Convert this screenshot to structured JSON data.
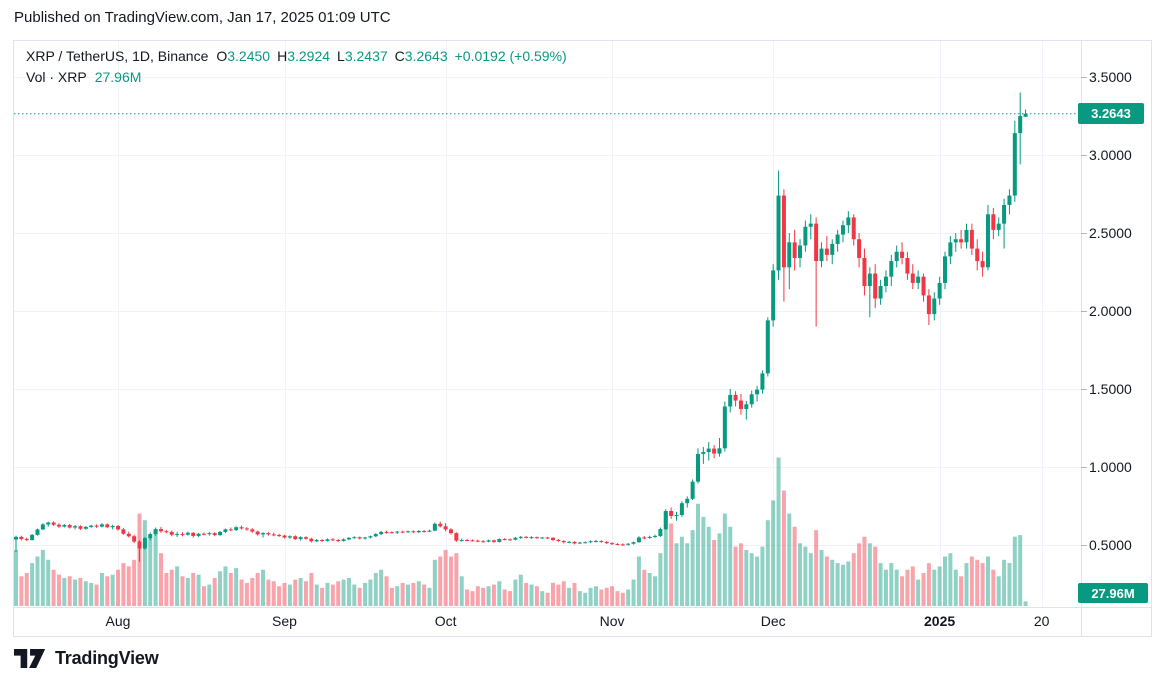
{
  "header": {
    "published_line": "Published on TradingView.com, Jan 17, 2025 01:09 UTC"
  },
  "legend": {
    "symbol": "XRP / TetherUS, 1D, Binance",
    "o_label": "O",
    "o": "3.2450",
    "h_label": "H",
    "h": "3.2924",
    "l_label": "L",
    "l": "3.2437",
    "c_label": "C",
    "c": "3.2643",
    "change": "+0.0192 (+0.59%)"
  },
  "volume_row": {
    "label": "Vol · XRP",
    "value": "27.96M"
  },
  "badges": {
    "last_price": "3.2643",
    "volume": "27.96M"
  },
  "footer": {
    "brand": "TradingView"
  },
  "colors": {
    "up": "#089981",
    "down": "#f23645",
    "volume_up": "rgba(8,153,129,0.45)",
    "volume_down": "rgba(242,54,69,0.45)",
    "grid": "#f0f3fa",
    "border": "#e0e3eb",
    "axis_tick": "#b2b5be",
    "text": "#131722",
    "badge": "#089981",
    "price_line": "#089981"
  },
  "chart_data": {
    "type": "candlestick",
    "title": "XRP / TetherUS, 1D, Binance",
    "symbol": "XRP/USDT",
    "exchange": "Binance",
    "interval": "1D",
    "start_date": "2024-07-13",
    "end_date": "2025-01-17",
    "last_close": 3.2643,
    "current_day_ohlc": {
      "o": 3.245,
      "h": 3.2924,
      "l": 3.2437,
      "c": 3.2643
    },
    "current_volume_millions": 27.96,
    "grid": true,
    "ylim": [
      0.1,
      3.73
    ],
    "price_ticks": [
      "3.5000",
      "3.0000",
      "2.5000",
      "2.0000",
      "1.5000",
      "1.0000",
      "0.5000"
    ],
    "time_labels": [
      {
        "text": "Aug",
        "index": 19
      },
      {
        "text": "Sep",
        "index": 50
      },
      {
        "text": "Oct",
        "index": 80
      },
      {
        "text": "Nov",
        "index": 111
      },
      {
        "text": "Dec",
        "index": 141
      },
      {
        "text": "2025",
        "index": 172,
        "bold": true
      },
      {
        "text": "20",
        "index": 191
      }
    ],
    "volume_unit": "millions_of_XRP",
    "candles_format": [
      "open",
      "high",
      "low",
      "close",
      "volume_millions"
    ],
    "candles": [
      [
        0.535,
        0.56,
        0.455,
        0.552,
        340
      ],
      [
        0.552,
        0.56,
        0.53,
        0.538,
        180
      ],
      [
        0.538,
        0.548,
        0.524,
        0.532,
        200
      ],
      [
        0.532,
        0.57,
        0.528,
        0.565,
        260
      ],
      [
        0.565,
        0.605,
        0.56,
        0.6,
        300
      ],
      [
        0.6,
        0.64,
        0.595,
        0.632,
        340
      ],
      [
        0.632,
        0.65,
        0.618,
        0.644,
        280
      ],
      [
        0.644,
        0.652,
        0.622,
        0.63,
        220
      ],
      [
        0.63,
        0.64,
        0.61,
        0.618,
        190
      ],
      [
        0.618,
        0.634,
        0.612,
        0.628,
        170
      ],
      [
        0.628,
        0.635,
        0.605,
        0.612,
        180
      ],
      [
        0.612,
        0.628,
        0.6,
        0.62,
        160
      ],
      [
        0.62,
        0.626,
        0.596,
        0.604,
        170
      ],
      [
        0.604,
        0.622,
        0.598,
        0.616,
        150
      ],
      [
        0.616,
        0.63,
        0.608,
        0.624,
        140
      ],
      [
        0.624,
        0.632,
        0.61,
        0.618,
        130
      ],
      [
        0.618,
        0.64,
        0.612,
        0.632,
        200
      ],
      [
        0.632,
        0.638,
        0.608,
        0.614,
        180
      ],
      [
        0.614,
        0.63,
        0.6,
        0.622,
        190
      ],
      [
        0.622,
        0.628,
        0.592,
        0.6,
        220
      ],
      [
        0.6,
        0.61,
        0.565,
        0.572,
        260
      ],
      [
        0.572,
        0.585,
        0.548,
        0.556,
        240
      ],
      [
        0.556,
        0.566,
        0.512,
        0.522,
        280
      ],
      [
        0.522,
        0.53,
        0.392,
        0.478,
        560
      ],
      [
        0.478,
        0.552,
        0.47,
        0.544,
        520
      ],
      [
        0.544,
        0.58,
        0.53,
        0.57,
        420
      ],
      [
        0.57,
        0.612,
        0.56,
        0.602,
        460
      ],
      [
        0.602,
        0.616,
        0.578,
        0.588,
        320
      ],
      [
        0.588,
        0.598,
        0.576,
        0.584,
        200
      ],
      [
        0.584,
        0.592,
        0.556,
        0.566,
        220
      ],
      [
        0.566,
        0.584,
        0.552,
        0.57,
        240
      ],
      [
        0.57,
        0.582,
        0.556,
        0.566,
        180
      ],
      [
        0.566,
        0.586,
        0.56,
        0.578,
        170
      ],
      [
        0.578,
        0.584,
        0.548,
        0.558,
        200
      ],
      [
        0.558,
        0.578,
        0.55,
        0.572,
        190
      ],
      [
        0.572,
        0.58,
        0.562,
        0.57,
        120
      ],
      [
        0.57,
        0.584,
        0.56,
        0.576,
        130
      ],
      [
        0.576,
        0.582,
        0.556,
        0.564,
        170
      ],
      [
        0.564,
        0.59,
        0.558,
        0.584,
        210
      ],
      [
        0.584,
        0.606,
        0.576,
        0.6,
        240
      ],
      [
        0.6,
        0.612,
        0.588,
        0.596,
        200
      ],
      [
        0.596,
        0.62,
        0.59,
        0.614,
        230
      ],
      [
        0.614,
        0.624,
        0.598,
        0.606,
        160
      ],
      [
        0.606,
        0.614,
        0.592,
        0.6,
        140
      ],
      [
        0.6,
        0.608,
        0.578,
        0.586,
        170
      ],
      [
        0.586,
        0.592,
        0.56,
        0.568,
        200
      ],
      [
        0.568,
        0.582,
        0.548,
        0.576,
        220
      ],
      [
        0.576,
        0.584,
        0.56,
        0.568,
        160
      ],
      [
        0.568,
        0.58,
        0.556,
        0.564,
        150
      ],
      [
        0.564,
        0.572,
        0.552,
        0.56,
        120
      ],
      [
        0.56,
        0.566,
        0.542,
        0.548,
        140
      ],
      [
        0.548,
        0.562,
        0.54,
        0.556,
        130
      ],
      [
        0.556,
        0.562,
        0.532,
        0.538,
        160
      ],
      [
        0.538,
        0.556,
        0.528,
        0.55,
        170
      ],
      [
        0.55,
        0.556,
        0.534,
        0.54,
        150
      ],
      [
        0.54,
        0.546,
        0.516,
        0.524,
        200
      ],
      [
        0.524,
        0.538,
        0.518,
        0.532,
        130
      ],
      [
        0.532,
        0.538,
        0.52,
        0.526,
        110
      ],
      [
        0.526,
        0.542,
        0.522,
        0.536,
        140
      ],
      [
        0.536,
        0.544,
        0.526,
        0.532,
        130
      ],
      [
        0.532,
        0.538,
        0.518,
        0.526,
        150
      ],
      [
        0.526,
        0.542,
        0.522,
        0.536,
        160
      ],
      [
        0.536,
        0.55,
        0.53,
        0.546,
        170
      ],
      [
        0.546,
        0.556,
        0.54,
        0.55,
        130
      ],
      [
        0.55,
        0.554,
        0.536,
        0.542,
        110
      ],
      [
        0.542,
        0.552,
        0.534,
        0.548,
        140
      ],
      [
        0.548,
        0.56,
        0.542,
        0.556,
        160
      ],
      [
        0.556,
        0.576,
        0.55,
        0.57,
        200
      ],
      [
        0.57,
        0.59,
        0.564,
        0.584,
        220
      ],
      [
        0.584,
        0.592,
        0.572,
        0.582,
        180
      ],
      [
        0.582,
        0.588,
        0.574,
        0.58,
        110
      ],
      [
        0.58,
        0.59,
        0.57,
        0.586,
        120
      ],
      [
        0.586,
        0.592,
        0.576,
        0.584,
        140
      ],
      [
        0.584,
        0.592,
        0.578,
        0.588,
        130
      ],
      [
        0.588,
        0.594,
        0.576,
        0.582,
        140
      ],
      [
        0.582,
        0.596,
        0.578,
        0.59,
        150
      ],
      [
        0.59,
        0.596,
        0.58,
        0.586,
        130
      ],
      [
        0.586,
        0.598,
        0.582,
        0.592,
        110
      ],
      [
        0.592,
        0.645,
        0.588,
        0.636,
        280
      ],
      [
        0.636,
        0.65,
        0.612,
        0.62,
        300
      ],
      [
        0.62,
        0.64,
        0.588,
        0.6,
        340
      ],
      [
        0.6,
        0.608,
        0.566,
        0.576,
        300
      ],
      [
        0.576,
        0.582,
        0.52,
        0.528,
        320
      ],
      [
        0.528,
        0.542,
        0.522,
        0.532,
        180
      ],
      [
        0.532,
        0.538,
        0.524,
        0.53,
        100
      ],
      [
        0.53,
        0.536,
        0.522,
        0.528,
        90
      ],
      [
        0.528,
        0.534,
        0.518,
        0.524,
        120
      ],
      [
        0.524,
        0.532,
        0.516,
        0.522,
        110
      ],
      [
        0.522,
        0.534,
        0.518,
        0.53,
        120
      ],
      [
        0.53,
        0.534,
        0.514,
        0.52,
        130
      ],
      [
        0.52,
        0.542,
        0.516,
        0.538,
        150
      ],
      [
        0.538,
        0.544,
        0.53,
        0.536,
        100
      ],
      [
        0.536,
        0.542,
        0.528,
        0.534,
        90
      ],
      [
        0.534,
        0.552,
        0.53,
        0.546,
        160
      ],
      [
        0.546,
        0.558,
        0.538,
        0.552,
        190
      ],
      [
        0.552,
        0.558,
        0.542,
        0.548,
        140
      ],
      [
        0.548,
        0.556,
        0.54,
        0.55,
        130
      ],
      [
        0.55,
        0.554,
        0.54,
        0.546,
        120
      ],
      [
        0.546,
        0.552,
        0.54,
        0.548,
        90
      ],
      [
        0.548,
        0.552,
        0.538,
        0.546,
        80
      ],
      [
        0.546,
        0.55,
        0.526,
        0.532,
        140
      ],
      [
        0.532,
        0.538,
        0.52,
        0.526,
        130
      ],
      [
        0.526,
        0.53,
        0.51,
        0.518,
        150
      ],
      [
        0.518,
        0.526,
        0.512,
        0.52,
        110
      ],
      [
        0.52,
        0.524,
        0.504,
        0.51,
        140
      ],
      [
        0.51,
        0.52,
        0.506,
        0.516,
        90
      ],
      [
        0.516,
        0.522,
        0.51,
        0.518,
        80
      ],
      [
        0.518,
        0.53,
        0.512,
        0.524,
        110
      ],
      [
        0.524,
        0.532,
        0.516,
        0.526,
        120
      ],
      [
        0.526,
        0.53,
        0.514,
        0.52,
        100
      ],
      [
        0.52,
        0.524,
        0.506,
        0.512,
        110
      ],
      [
        0.512,
        0.518,
        0.5,
        0.506,
        120
      ],
      [
        0.506,
        0.512,
        0.498,
        0.504,
        90
      ],
      [
        0.504,
        0.51,
        0.494,
        0.502,
        80
      ],
      [
        0.502,
        0.512,
        0.496,
        0.508,
        100
      ],
      [
        0.508,
        0.522,
        0.502,
        0.518,
        160
      ],
      [
        0.518,
        0.556,
        0.514,
        0.548,
        300
      ],
      [
        0.548,
        0.558,
        0.536,
        0.546,
        220
      ],
      [
        0.546,
        0.56,
        0.54,
        0.552,
        200
      ],
      [
        0.552,
        0.566,
        0.546,
        0.558,
        180
      ],
      [
        0.558,
        0.612,
        0.552,
        0.602,
        320
      ],
      [
        0.602,
        0.73,
        0.596,
        0.718,
        560
      ],
      [
        0.718,
        0.74,
        0.668,
        0.686,
        500
      ],
      [
        0.686,
        0.712,
        0.656,
        0.692,
        380
      ],
      [
        0.692,
        0.78,
        0.68,
        0.768,
        420
      ],
      [
        0.768,
        0.812,
        0.74,
        0.796,
        380
      ],
      [
        0.796,
        0.92,
        0.788,
        0.906,
        460
      ],
      [
        0.906,
        1.12,
        0.894,
        1.084,
        620
      ],
      [
        1.084,
        1.128,
        1.02,
        1.096,
        540
      ],
      [
        1.096,
        1.16,
        1.042,
        1.118,
        480
      ],
      [
        1.118,
        1.14,
        1.056,
        1.086,
        400
      ],
      [
        1.086,
        1.186,
        1.066,
        1.12,
        440
      ],
      [
        1.12,
        1.42,
        1.1,
        1.388,
        560
      ],
      [
        1.388,
        1.5,
        1.35,
        1.462,
        480
      ],
      [
        1.462,
        1.486,
        1.388,
        1.426,
        360
      ],
      [
        1.426,
        1.468,
        1.336,
        1.372,
        380
      ],
      [
        1.372,
        1.424,
        1.304,
        1.402,
        340
      ],
      [
        1.402,
        1.49,
        1.38,
        1.466,
        320
      ],
      [
        1.466,
        1.52,
        1.42,
        1.496,
        300
      ],
      [
        1.496,
        1.62,
        1.47,
        1.6,
        360
      ],
      [
        1.6,
        1.96,
        1.58,
        1.94,
        520
      ],
      [
        1.94,
        2.3,
        1.9,
        2.26,
        640
      ],
      [
        2.26,
        2.9,
        2.2,
        2.74,
        900
      ],
      [
        2.74,
        2.78,
        2.06,
        2.28,
        700
      ],
      [
        2.28,
        2.5,
        2.14,
        2.44,
        560
      ],
      [
        2.44,
        2.52,
        2.26,
        2.34,
        480
      ],
      [
        2.34,
        2.46,
        2.28,
        2.42,
        380
      ],
      [
        2.42,
        2.58,
        2.38,
        2.54,
        360
      ],
      [
        2.54,
        2.62,
        2.46,
        2.56,
        320
      ],
      [
        2.56,
        2.6,
        1.9,
        2.32,
        460
      ],
      [
        2.32,
        2.44,
        2.28,
        2.4,
        340
      ],
      [
        2.4,
        2.48,
        2.32,
        2.36,
        300
      ],
      [
        2.36,
        2.46,
        2.3,
        2.43,
        280
      ],
      [
        2.43,
        2.52,
        2.38,
        2.49,
        260
      ],
      [
        2.49,
        2.58,
        2.44,
        2.55,
        250
      ],
      [
        2.55,
        2.64,
        2.5,
        2.6,
        270
      ],
      [
        2.6,
        2.62,
        2.42,
        2.46,
        320
      ],
      [
        2.46,
        2.5,
        2.28,
        2.34,
        380
      ],
      [
        2.34,
        2.4,
        2.1,
        2.16,
        420
      ],
      [
        2.16,
        2.28,
        1.96,
        2.24,
        380
      ],
      [
        2.24,
        2.3,
        2.02,
        2.08,
        360
      ],
      [
        2.08,
        2.2,
        2.04,
        2.16,
        260
      ],
      [
        2.16,
        2.26,
        2.12,
        2.22,
        220
      ],
      [
        2.22,
        2.36,
        2.16,
        2.32,
        260
      ],
      [
        2.32,
        2.42,
        2.28,
        2.38,
        220
      ],
      [
        2.38,
        2.44,
        2.3,
        2.34,
        180
      ],
      [
        2.34,
        2.38,
        2.2,
        2.24,
        220
      ],
      [
        2.24,
        2.3,
        2.14,
        2.18,
        240
      ],
      [
        2.18,
        2.26,
        2.14,
        2.22,
        160
      ],
      [
        2.22,
        2.24,
        2.06,
        2.1,
        200
      ],
      [
        2.1,
        2.14,
        1.91,
        1.98,
        260
      ],
      [
        1.98,
        2.12,
        1.94,
        2.08,
        220
      ],
      [
        2.08,
        2.22,
        2.04,
        2.18,
        240
      ],
      [
        2.18,
        2.38,
        2.14,
        2.35,
        300
      ],
      [
        2.35,
        2.48,
        2.3,
        2.44,
        320
      ],
      [
        2.44,
        2.5,
        2.38,
        2.46,
        220
      ],
      [
        2.46,
        2.52,
        2.4,
        2.44,
        180
      ],
      [
        2.44,
        2.56,
        2.4,
        2.52,
        260
      ],
      [
        2.52,
        2.56,
        2.36,
        2.4,
        300
      ],
      [
        2.4,
        2.46,
        2.26,
        2.32,
        280
      ],
      [
        2.32,
        2.38,
        2.22,
        2.28,
        260
      ],
      [
        2.28,
        2.68,
        2.26,
        2.62,
        300
      ],
      [
        2.62,
        2.66,
        2.46,
        2.52,
        220
      ],
      [
        2.52,
        2.6,
        2.48,
        2.56,
        180
      ],
      [
        2.56,
        2.72,
        2.4,
        2.68,
        280
      ],
      [
        2.68,
        2.78,
        2.62,
        2.74,
        260
      ],
      [
        2.74,
        3.22,
        2.7,
        3.14,
        420
      ],
      [
        3.14,
        3.4,
        2.94,
        3.25,
        430
      ],
      [
        3.245,
        3.2924,
        3.2437,
        3.2643,
        27.96
      ]
    ]
  }
}
